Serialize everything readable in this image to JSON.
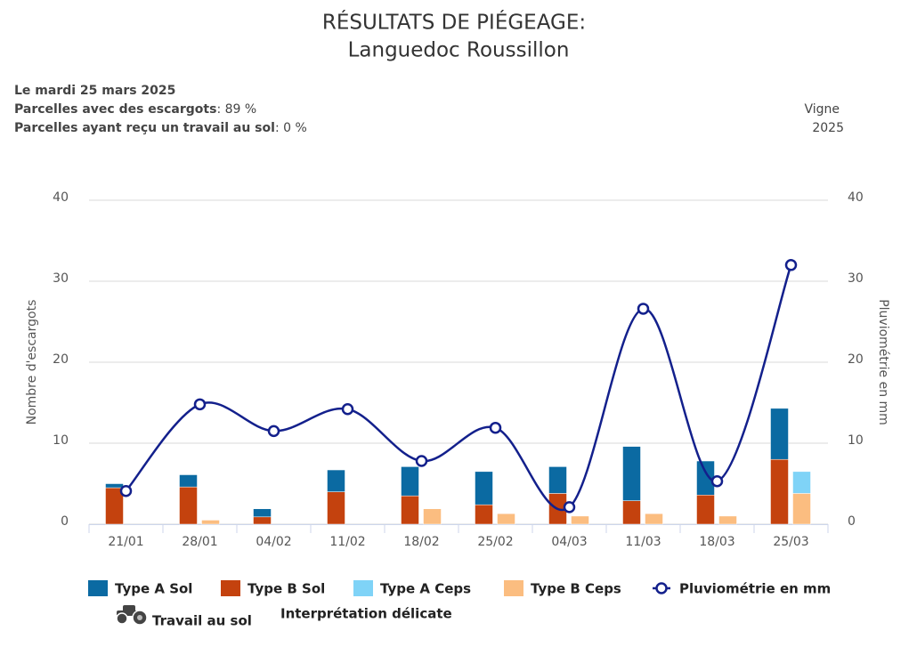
{
  "header": {
    "title": "RÉSULTATS DE PIÉGEAGE:",
    "subtitle": "Languedoc Roussillon",
    "date": "Le mardi 25 mars 2025",
    "lines": [
      {
        "label": "Parcelles avec des escargots",
        "value": ": 89 %"
      },
      {
        "label": "Parcelles ayant reçu un travail au sol",
        "value": ": 0 %"
      }
    ],
    "crop": "Vigne",
    "year": "2025"
  },
  "chart_data": {
    "type": "bar",
    "y_label": "Nombre d'escargots",
    "y2_label": "Pluviométrie en mm",
    "categories": [
      "21/01",
      "28/01",
      "04/02",
      "11/02",
      "18/02",
      "25/02",
      "04/03",
      "11/03",
      "18/03",
      "25/03"
    ],
    "series": [
      {
        "name": "Type A Sol",
        "color": "#0b6aa2",
        "values": [
          0.5,
          1.5,
          1.0,
          2.7,
          3.6,
          4.1,
          3.3,
          6.7,
          4.2,
          6.3
        ]
      },
      {
        "name": "Type B Sol",
        "color": "#c4420e",
        "values": [
          4.5,
          4.6,
          0.9,
          4.0,
          3.5,
          2.4,
          3.8,
          2.9,
          3.6,
          8.0
        ]
      },
      {
        "name": "Type A Ceps",
        "color": "#7fd3f7",
        "values": [
          0,
          0,
          0,
          0,
          0,
          0,
          0,
          0,
          0,
          2.7
        ]
      },
      {
        "name": "Type B Ceps",
        "color": "#fbbd80",
        "values": [
          0,
          0.5,
          0,
          0,
          1.9,
          1.3,
          1.0,
          1.3,
          1.0,
          3.8
        ]
      },
      {
        "name": "Pluviométrie en mm",
        "type": "line",
        "axis": "y2",
        "color": "#13208c",
        "values": [
          4.1,
          14.8,
          11.5,
          14.2,
          7.8,
          11.9,
          2.1,
          26.6,
          5.3,
          32.0
        ]
      }
    ],
    "ylim": [
      0,
      40
    ],
    "yticks": [
      0,
      10,
      20,
      30,
      40
    ],
    "y2lim": [
      0,
      40
    ],
    "y2ticks": [
      0,
      10,
      20,
      30,
      40
    ],
    "grid": true,
    "legend_extras": [
      "Travail au sol",
      "Interprétation délicate"
    ]
  }
}
